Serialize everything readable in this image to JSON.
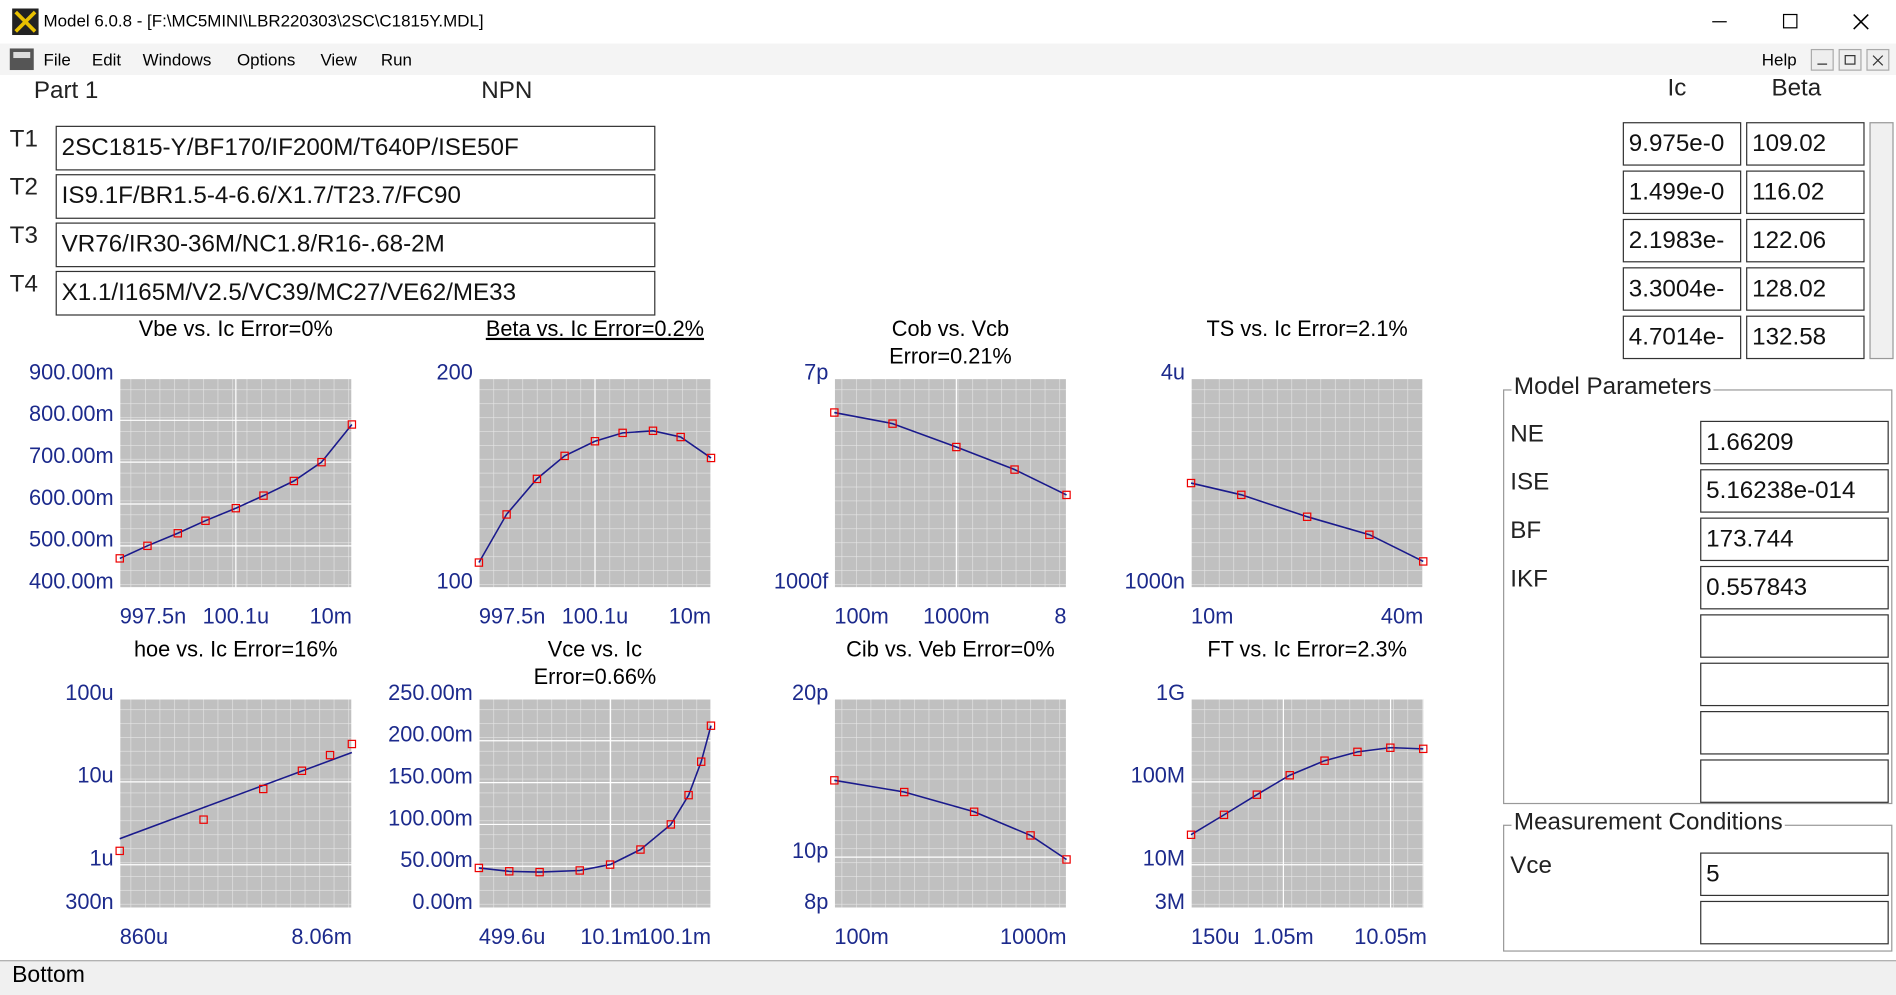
{
  "window": {
    "title": "Model 6.0.8 - [F:\\MC5MINI\\LBR220303\\2SC\\C1815Y.MDL]"
  },
  "menu": [
    "File",
    "Edit",
    "Windows",
    "Options",
    "View",
    "Run"
  ],
  "help": "Help",
  "part": "Part  1",
  "polarity": "NPN",
  "text_fields": [
    {
      "label": "T1",
      "value": "2SC1815-Y/BF170/IF200M/T640P/ISE50F"
    },
    {
      "label": "T2",
      "value": "IS9.1F/BR1.5-4-6.6/X1.7/T23.7/FC90"
    },
    {
      "label": "T3",
      "value": "VR76/IR30-36M/NC1.8/R16-.68-2M"
    },
    {
      "label": "T4",
      "value": "X1.1/I165M/V2.5/VC39/MC27/VE62/ME33"
    }
  ],
  "ic_beta_table": {
    "headers": [
      "Ic",
      "Beta"
    ],
    "rows": [
      [
        "9.975e-0",
        "109.02"
      ],
      [
        "1.499e-0",
        "116.02"
      ],
      [
        "2.1983e-",
        "122.06"
      ],
      [
        "3.3004e-",
        "128.02"
      ],
      [
        "4.7014e-",
        "132.58"
      ]
    ]
  },
  "model_parameters": {
    "title": "Model Parameters",
    "rows": [
      {
        "name": "NE",
        "value": "1.66209"
      },
      {
        "name": "ISE",
        "value": "5.16238e-014"
      },
      {
        "name": "BF",
        "value": "173.744"
      },
      {
        "name": "IKF",
        "value": "0.557843"
      }
    ]
  },
  "measurement_conditions": {
    "title": "Measurement Conditions",
    "rows": [
      {
        "name": "Vce",
        "value": "5"
      }
    ]
  },
  "status": "Bottom",
  "plots": [
    {
      "title": "Vbe vs. Ic Error=0%",
      "xlog": true,
      "ylog": false,
      "xlim": [
        9.975e-07,
        0.01
      ],
      "ylim": [
        0.4,
        0.9
      ],
      "xticks": [
        {
          "value": 9.975e-07,
          "label": "997.5n"
        },
        {
          "value": 0.0001001,
          "label": "100.1u"
        },
        {
          "value": 0.01,
          "label": "10m"
        }
      ],
      "yticks": [
        {
          "value": 0.9,
          "label": "900.00m"
        },
        {
          "value": 0.8,
          "label": "800.00m"
        },
        {
          "value": 0.7,
          "label": "700.00m"
        },
        {
          "value": 0.6,
          "label": "600.00m"
        },
        {
          "value": 0.5,
          "label": "500.00m"
        },
        {
          "value": 0.4,
          "label": "400.00m"
        }
      ],
      "points": [
        [
          1e-06,
          0.47
        ],
        [
          3e-06,
          0.5
        ],
        [
          1e-05,
          0.53
        ],
        [
          3e-05,
          0.56
        ],
        [
          0.0001,
          0.59
        ],
        [
          0.0003,
          0.62
        ],
        [
          0.001,
          0.655
        ],
        [
          0.003,
          0.7
        ],
        [
          0.01,
          0.79
        ]
      ]
    },
    {
      "title": "Beta vs. Ic Error=0.2%",
      "selected": true,
      "xlog": true,
      "ylog": false,
      "xlim": [
        9.975e-07,
        0.01
      ],
      "ylim": [
        100,
        200
      ],
      "xticks": [
        {
          "value": 9.975e-07,
          "label": "997.5n"
        },
        {
          "value": 0.0001001,
          "label": "100.1u"
        },
        {
          "value": 0.01,
          "label": "10m"
        }
      ],
      "yticks": [
        200,
        100
      ],
      "points": [
        [
          1e-06,
          112
        ],
        [
          3e-06,
          135
        ],
        [
          1e-05,
          152
        ],
        [
          3e-05,
          163
        ],
        [
          0.0001,
          170
        ],
        [
          0.0003,
          174
        ],
        [
          0.001,
          175
        ],
        [
          0.003,
          172
        ],
        [
          0.01,
          162
        ]
      ]
    },
    {
      "title": [
        "Cob vs. Vcb",
        "Error=0.21%"
      ],
      "xlog": true,
      "ylog": true,
      "xlim": [
        0.1,
        8
      ],
      "ylim": [
        1e-12,
        7e-12
      ],
      "xticks": [
        {
          "value": 0.1,
          "label": "100m"
        },
        {
          "value": 1,
          "label": "1000m"
        },
        8
      ],
      "yticks": [
        {
          "value": 7e-12,
          "label": "7p"
        },
        {
          "value": 1e-12,
          "label": "1000f"
        }
      ],
      "points": [
        [
          0.1,
          5.1e-12
        ],
        [
          0.3,
          4.6e-12
        ],
        [
          1,
          3.7e-12
        ],
        [
          3,
          3e-12
        ],
        [
          8,
          2.37e-12
        ]
      ]
    },
    {
      "title": "TS vs. Ic Error=2.1%",
      "xlog": true,
      "ylog": true,
      "xlim": [
        0.01,
        0.04
      ],
      "ylim": [
        1e-06,
        4e-06
      ],
      "xticks": [
        {
          "value": 0.01,
          "label": "10m"
        },
        {
          "value": 0.04,
          "label": "40m"
        }
      ],
      "yticks": [
        {
          "value": 4e-06,
          "label": "4u"
        },
        {
          "value": 1e-06,
          "label": "1000n"
        }
      ],
      "points": [
        [
          0.01,
          2e-06
        ],
        [
          0.0135,
          1.85e-06
        ],
        [
          0.02,
          1.6e-06
        ],
        [
          0.029,
          1.42e-06
        ],
        [
          0.04,
          1.19e-06
        ]
      ]
    },
    {
      "title": "hoe vs. Ic Error=16%",
      "xlog": true,
      "ylog": true,
      "xlim": [
        0.00086,
        0.00806
      ],
      "ylim": [
        3e-07,
        0.0001
      ],
      "xticks": [
        {
          "value": 0.00086,
          "label": "860u"
        },
        {
          "value": 0.00806,
          "label": "8.06m"
        }
      ],
      "yticks": [
        {
          "value": 0.0001,
          "label": "100u"
        },
        {
          "value": 1e-05,
          "label": "10u"
        },
        {
          "value": 1e-06,
          "label": "1u"
        },
        {
          "value": 3e-07,
          "label": "300n"
        }
      ],
      "points": [
        [
          0.00086,
          1.47e-06
        ],
        [
          0.00193,
          3.5e-06
        ],
        [
          0.00343,
          8.2e-06
        ],
        [
          0.00498,
          1.36e-05
        ],
        [
          0.00653,
          2.1e-05
        ],
        [
          0.00806,
          2.86e-05
        ]
      ],
      "model": [
        [
          0.00086,
          2.06e-06
        ],
        [
          0.00806,
          2.26e-05
        ]
      ]
    },
    {
      "title": [
        "Vce vs. Ic",
        "Error=0.66%"
      ],
      "xlog": true,
      "ylog": false,
      "xlim": [
        0.0004996,
        0.1001
      ],
      "ylim": [
        0,
        0.25
      ],
      "xticks": [
        {
          "value": 0.0004996,
          "label": "499.6u"
        },
        {
          "value": 0.0101,
          "label": "10.1m"
        },
        {
          "value": 0.1001,
          "label": "100.1m"
        }
      ],
      "yticks": [
        {
          "value": 0.25,
          "label": "250.00m"
        },
        {
          "value": 0.2,
          "label": "200.00m"
        },
        {
          "value": 0.15,
          "label": "150.00m"
        },
        {
          "value": 0.1,
          "label": "100.00m"
        },
        {
          "value": 0.05,
          "label": "50.00m"
        },
        {
          "value": 0,
          "label": "0.00m"
        }
      ],
      "points": [
        [
          0.0005,
          0.048
        ],
        [
          0.001,
          0.044
        ],
        [
          0.002,
          0.043
        ],
        [
          0.005,
          0.045
        ],
        [
          0.01,
          0.052
        ],
        [
          0.02,
          0.07
        ],
        [
          0.04,
          0.1
        ],
        [
          0.06,
          0.135
        ],
        [
          0.08,
          0.175
        ],
        [
          0.1,
          0.218
        ]
      ]
    },
    {
      "title": "Cib vs. Veb Error=0%",
      "xlog": true,
      "ylog": true,
      "xlim": [
        0.1,
        1
      ],
      "ylim": [
        8e-12,
        2e-11
      ],
      "xticks": [
        {
          "value": 0.1,
          "label": "100m"
        },
        {
          "value": 1,
          "label": "1000m"
        }
      ],
      "yticks": [
        {
          "value": 2e-11,
          "label": "20p"
        },
        {
          "value": 1e-11,
          "label": "10p"
        },
        {
          "value": 8e-12,
          "label": "8p"
        }
      ],
      "points": [
        [
          0.1,
          1.4e-11
        ],
        [
          0.2,
          1.33e-11
        ],
        [
          0.4,
          1.22e-11
        ],
        [
          0.7,
          1.1e-11
        ],
        [
          1,
          9.9e-12
        ]
      ]
    },
    {
      "title": "FT vs. Ic Error=2.3%",
      "xlog": true,
      "ylog": true,
      "xlim": [
        0.00015,
        0.02
      ],
      "ylim": [
        3000000.0,
        1000000000.0
      ],
      "xticks": [
        {
          "value": 0.00015,
          "label": "150u"
        },
        {
          "value": 0.00105,
          "label": "1.05m"
        },
        {
          "value": 0.01005,
          "label": "10.05m"
        }
      ],
      "yticks": [
        {
          "value": 1000000000.0,
          "label": "1G"
        },
        {
          "value": 100000000.0,
          "label": "100M"
        },
        {
          "value": 10000000.0,
          "label": "10M"
        },
        {
          "value": 3000000.0,
          "label": "3M"
        }
      ],
      "points": [
        [
          0.00015,
          23000000.0
        ],
        [
          0.0003,
          40000000.0
        ],
        [
          0.0006,
          70000000.0
        ],
        [
          0.0012,
          120000000.0
        ],
        [
          0.0025,
          180000000.0
        ],
        [
          0.005,
          230000000.0
        ],
        [
          0.01,
          258000000.0
        ],
        [
          0.02,
          250000000.0
        ]
      ]
    }
  ]
}
